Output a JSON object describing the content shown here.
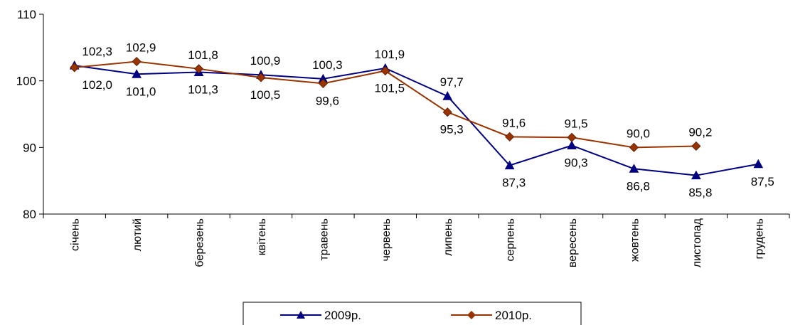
{
  "chart_data": {
    "type": "line",
    "title": "",
    "xlabel": "",
    "ylabel": "",
    "ylim": [
      80,
      110
    ],
    "yticks": [
      "80",
      "90",
      "100",
      "110"
    ],
    "grid": false,
    "legend_position": "bottom",
    "categories": [
      "січень",
      "лютий",
      "березень",
      "квітень",
      "травень",
      "червень",
      "липень",
      "серпень",
      "вересень",
      "жовтень",
      "листопад",
      "грудень"
    ],
    "series": [
      {
        "name": "2009р.",
        "color": "#000080",
        "marker": "triangle",
        "values": [
          102.3,
          101.0,
          101.3,
          100.9,
          100.3,
          101.9,
          97.7,
          87.3,
          90.3,
          86.8,
          85.8,
          87.5
        ],
        "labels": [
          "102,3",
          "101,0",
          "101,3",
          "100,9",
          "100,3",
          "101,9",
          "97,7",
          "87,3",
          "90,3",
          "86,8",
          "85,8",
          "87,5"
        ]
      },
      {
        "name": "2010р.",
        "color": "#993300",
        "marker": "diamond",
        "values": [
          102.0,
          102.9,
          101.8,
          100.5,
          99.6,
          101.5,
          95.3,
          91.6,
          91.5,
          90.0,
          90.2,
          null
        ],
        "labels": [
          "102,0",
          "102,9",
          "101,8",
          "100,5",
          "99,6",
          "101,5",
          "95,3",
          "91,6",
          "91,5",
          "90,0",
          "90,2",
          ""
        ]
      }
    ]
  }
}
